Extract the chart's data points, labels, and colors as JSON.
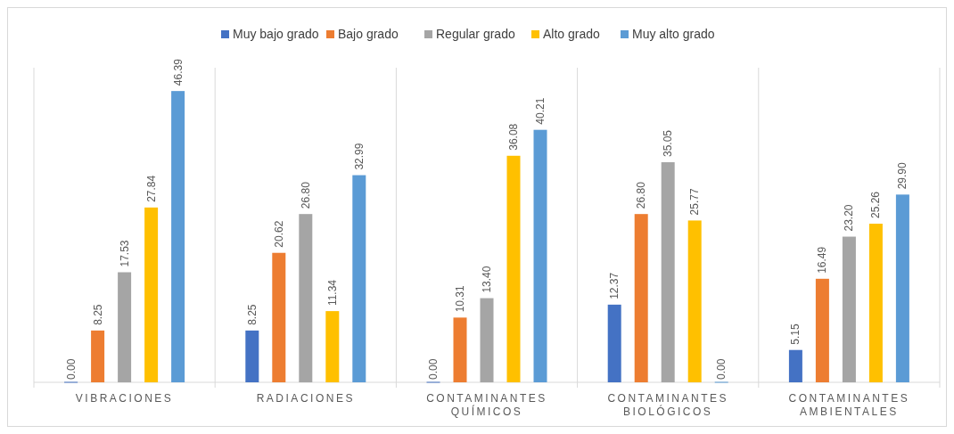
{
  "chart_data": {
    "type": "bar",
    "categories": [
      "VIBRACIONES",
      "RADIACIONES",
      "CONTAMINANTES QUÍMICOS",
      "CONTAMINANTES BIOLÓGICOS",
      "CONTAMINANTES AMBIENTALES"
    ],
    "series": [
      {
        "name": "Muy bajo grado",
        "color": "#4472c4",
        "values": [
          0.0,
          8.25,
          0.0,
          12.37,
          5.15
        ],
        "value_labels": [
          "0.00",
          "8.25",
          "0.00",
          "12.37",
          "5.15"
        ]
      },
      {
        "name": "Bajo grado",
        "color": "#ed7d31",
        "values": [
          8.25,
          20.62,
          10.31,
          26.8,
          16.49
        ],
        "value_labels": [
          "8.25",
          "20.62",
          "10.31",
          "26.80",
          "16.49"
        ]
      },
      {
        "name": "Regular grado",
        "color": "#a5a5a5",
        "values": [
          17.53,
          26.8,
          13.4,
          35.05,
          23.2
        ],
        "value_labels": [
          "17.53",
          "26.80",
          "13.40",
          "35.05",
          "23.20"
        ]
      },
      {
        "name": "Alto grado",
        "color": "#ffc000",
        "values": [
          27.84,
          11.34,
          36.08,
          25.77,
          25.26
        ],
        "value_labels": [
          "27.84",
          "11.34",
          "36.08",
          "25.77",
          "25.26"
        ]
      },
      {
        "name": "Muy alto grado",
        "color": "#5b9bd5",
        "values": [
          46.39,
          32.99,
          40.21,
          0.0,
          29.9
        ],
        "value_labels": [
          "46.39",
          "32.99",
          "40.21",
          "0.00",
          "29.90"
        ]
      }
    ],
    "legend": "top",
    "grid": false
  }
}
